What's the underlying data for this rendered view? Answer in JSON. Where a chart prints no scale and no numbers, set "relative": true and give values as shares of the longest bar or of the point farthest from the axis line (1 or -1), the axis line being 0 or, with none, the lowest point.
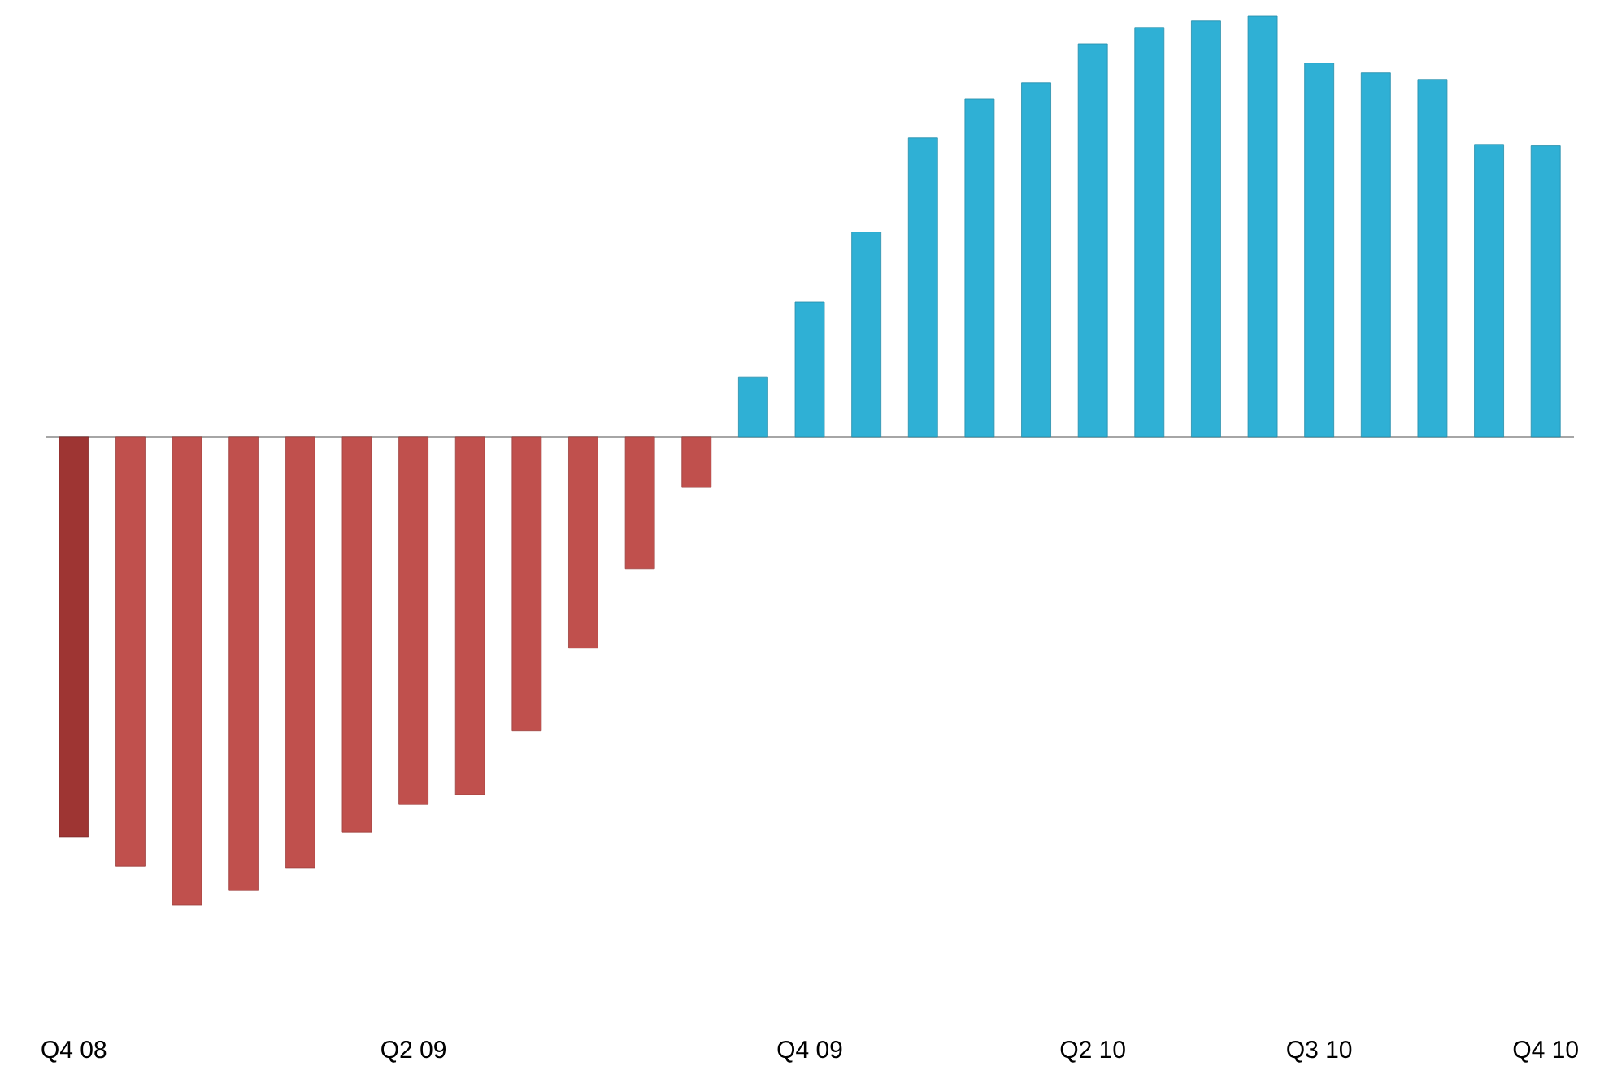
{
  "chart_data": {
    "type": "bar",
    "relative": true,
    "categories": [
      "Q4 08",
      null,
      null,
      null,
      null,
      null,
      "Q2 09",
      null,
      null,
      null,
      null,
      null,
      null,
      "Q4 09",
      null,
      null,
      null,
      null,
      "Q2 10",
      null,
      null,
      null,
      "Q3 10",
      null,
      null,
      null,
      "Q4 10"
    ],
    "values": [
      -0.854,
      -0.917,
      -1,
      -0.969,
      -0.92,
      -0.844,
      -0.785,
      -0.764,
      -0.628,
      -0.451,
      -0.281,
      -0.108,
      0.128,
      0.288,
      0.438,
      0.639,
      0.722,
      0.757,
      0.84,
      0.875,
      0.889,
      0.899,
      0.799,
      0.778,
      0.764,
      0.625,
      0.622
    ],
    "colors": [
      "#9e3533",
      "#c0504d",
      "#c0504d",
      "#c0504d",
      "#c0504d",
      "#c0504d",
      "#c0504d",
      "#c0504d",
      "#c0504d",
      "#c0504d",
      "#c0504d",
      "#c0504d",
      "#2fb0d5",
      "#2fb0d5",
      "#2fb0d5",
      "#2fb0d5",
      "#2fb0d5",
      "#2fb0d5",
      "#2fb0d5",
      "#2fb0d5",
      "#2fb0d5",
      "#2fb0d5",
      "#2fb0d5",
      "#2fb0d5",
      "#2fb0d5",
      "#2fb0d5",
      "#2fb0d5"
    ]
  }
}
